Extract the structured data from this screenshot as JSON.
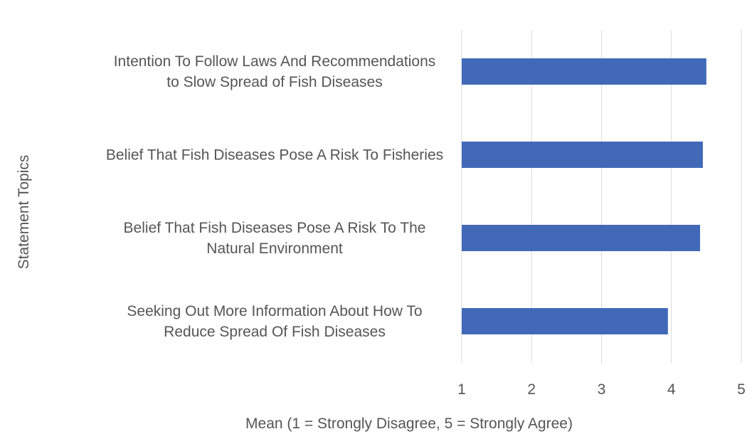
{
  "chart_data": {
    "type": "bar",
    "orientation": "horizontal",
    "categories": [
      [
        "Intention To Follow Laws And Recommendations",
        "to Slow Spread of Fish Diseases"
      ],
      [
        "Belief That Fish Diseases Pose A Risk To Fisheries"
      ],
      [
        "Belief That Fish Diseases Pose A Risk To The",
        "Natural Environment"
      ],
      [
        "Seeking Out More Information About How To",
        "Reduce Spread Of Fish Diseases"
      ]
    ],
    "values": [
      4.5,
      4.45,
      4.41,
      3.95
    ],
    "xlim": [
      1,
      5
    ],
    "xticks": [
      "1",
      "2",
      "3",
      "4",
      "5"
    ],
    "xlabel": "Mean (1 = Strongly Disagree, 5 = Strongly Agree)",
    "ylabel": "Statement Topics",
    "grid": "vertical",
    "legend": "none",
    "bar_color": "#4169b8"
  }
}
